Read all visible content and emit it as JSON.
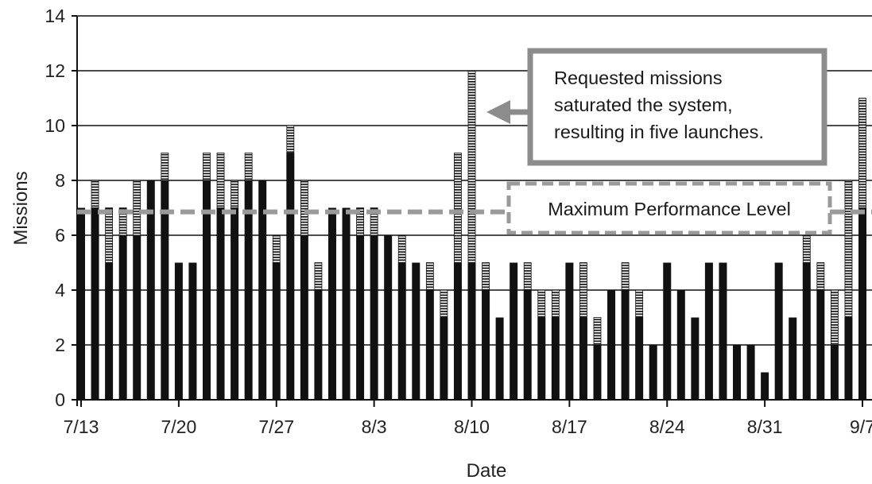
{
  "chart_data": {
    "type": "bar",
    "stacked": true,
    "xlabel": "Date",
    "ylabel": "Missions",
    "ylim": [
      0,
      14
    ],
    "yticks": [
      0,
      2,
      4,
      6,
      8,
      10,
      12,
      14
    ],
    "x_start": "7/13",
    "x_end": "9/7",
    "xtick_labels": [
      "7/13",
      "7/20",
      "7/27",
      "8/3",
      "8/10",
      "8/17",
      "8/24",
      "8/31",
      "9/7"
    ],
    "grid": "horizontal",
    "series": [
      {
        "pattern": "solid",
        "color": "#111111",
        "x": [
          "7/13",
          "7/14",
          "7/15",
          "7/16",
          "7/17",
          "7/18",
          "7/19",
          "7/20",
          "7/21",
          "7/22",
          "7/23",
          "7/24",
          "7/25",
          "7/26",
          "7/27",
          "7/28",
          "7/29",
          "7/30",
          "7/31",
          "8/1",
          "8/2",
          "8/3",
          "8/4",
          "8/5",
          "8/6",
          "8/7",
          "8/8",
          "8/9",
          "8/10",
          "8/11",
          "8/12",
          "8/13",
          "8/14",
          "8/15",
          "8/16",
          "8/17",
          "8/18",
          "8/19",
          "8/20",
          "8/21",
          "8/22",
          "8/23",
          "8/24",
          "8/25",
          "8/26",
          "8/27",
          "8/28",
          "8/29",
          "8/30",
          "8/31",
          "9/1",
          "9/2",
          "9/3",
          "9/4",
          "9/5",
          "9/6",
          "9/7"
        ],
        "values": [
          7,
          7,
          5,
          6,
          6,
          8,
          8,
          5,
          5,
          8,
          7,
          7,
          8,
          8,
          5,
          9,
          6,
          4,
          7,
          7,
          6,
          6,
          6,
          5,
          5,
          4,
          3,
          5,
          5,
          4,
          3,
          5,
          4,
          3,
          3,
          5,
          3,
          2,
          4,
          4,
          3,
          2,
          5,
          4,
          3,
          5,
          5,
          2,
          2,
          1,
          5,
          3,
          5,
          4,
          2,
          3,
          7
        ]
      },
      {
        "pattern": "striped",
        "color": "#111111",
        "x": [
          "7/13",
          "7/14",
          "7/15",
          "7/16",
          "7/17",
          "7/18",
          "7/19",
          "7/20",
          "7/21",
          "7/22",
          "7/23",
          "7/24",
          "7/25",
          "7/26",
          "7/27",
          "7/28",
          "7/29",
          "7/30",
          "7/31",
          "8/1",
          "8/2",
          "8/3",
          "8/4",
          "8/5",
          "8/6",
          "8/7",
          "8/8",
          "8/9",
          "8/10",
          "8/11",
          "8/12",
          "8/13",
          "8/14",
          "8/15",
          "8/16",
          "8/17",
          "8/18",
          "8/19",
          "8/20",
          "8/21",
          "8/22",
          "8/23",
          "8/24",
          "8/25",
          "8/26",
          "8/27",
          "8/28",
          "8/29",
          "8/30",
          "8/31",
          "9/1",
          "9/2",
          "9/3",
          "9/4",
          "9/5",
          "9/6",
          "9/7"
        ],
        "values": [
          0,
          1,
          2,
          1,
          2,
          0,
          1,
          0,
          0,
          1,
          2,
          1,
          1,
          0,
          1,
          1,
          2,
          1,
          0,
          0,
          1,
          1,
          0,
          1,
          0,
          1,
          1,
          4,
          7,
          1,
          0,
          0,
          1,
          1,
          1,
          0,
          2,
          1,
          0,
          1,
          1,
          0,
          0,
          0,
          0,
          0,
          0,
          0,
          0,
          0,
          0,
          0,
          1,
          1,
          2,
          5,
          4
        ]
      }
    ],
    "reference_line": {
      "label": "Maximum Performance Level",
      "value": 6.85,
      "style": "dashed gray"
    },
    "annotation": {
      "lines": [
        "Requested missions",
        "saturated the system,",
        "resulting in five launches."
      ],
      "points_to": "8/10"
    }
  }
}
